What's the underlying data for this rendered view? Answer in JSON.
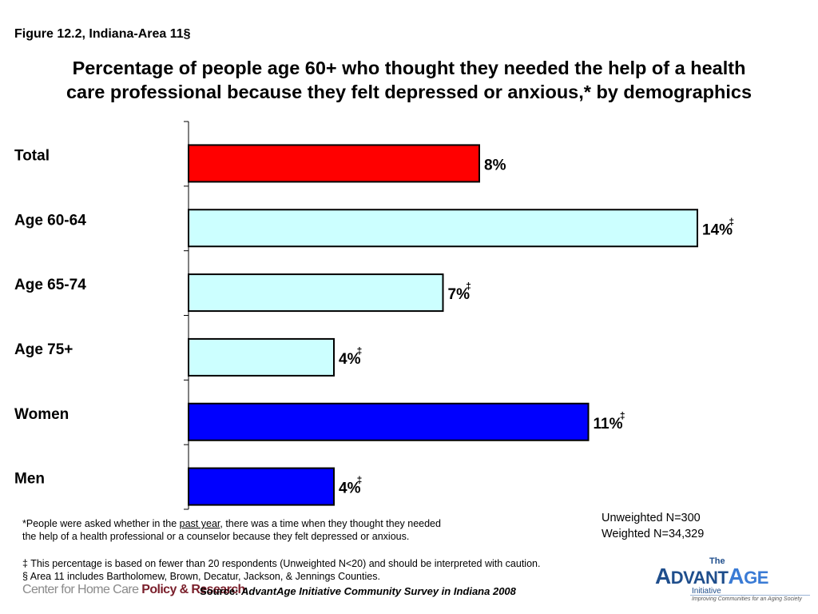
{
  "figure_label": "Figure 12.2, Indiana-Area 11§",
  "title_line1": "Percentage of people age 60+ who thought they needed the help of a health",
  "title_line2": "care professional because they felt depressed or anxious,* by demographics",
  "chart_data": {
    "type": "bar",
    "orientation": "horizontal",
    "categories": [
      "Total",
      "Age 60-64",
      "Age 65-74",
      "Age 75+",
      "Women",
      "Men"
    ],
    "values": [
      8,
      14,
      7,
      4,
      11,
      4
    ],
    "value_labels": [
      "8%",
      "14%",
      "7%",
      "4%",
      "11%",
      "4%"
    ],
    "flags": [
      "",
      "‡",
      "‡",
      "‡",
      "‡",
      "‡"
    ],
    "colors": [
      "#ff0000",
      "#ccffff",
      "#ccffff",
      "#ccffff",
      "#0000ff",
      "#0000ff"
    ],
    "xlim": [
      0,
      14
    ],
    "grid": false,
    "legend": "none"
  },
  "footnote_pre": "*People were asked whether in the ",
  "footnote_underlined": "past year",
  "footnote_post": ", there was a time when they thought they needed",
  "footnote_line2": "the help of a health professional or a counselor because they felt depressed or anxious.",
  "unweighted_n": "Unweighted N=300",
  "weighted_n": "Weighted N=34,329",
  "dagger_note": "‡ This percentage is based on fewer than 20 respondents (Unweighted N<20) and should be interpreted with caution.",
  "section_note": "§ Area 11 includes Bartholomew, Brown, Decatur, Jackson, & Jennings Counties.",
  "source_label": "Source: ",
  "source_text": "AdvantAge Initiative Community Survey in Indiana 2008",
  "logo_left": {
    "part1": "Center for Home Care ",
    "part2": "Policy & Research"
  },
  "logo_right": {
    "the": "The",
    "word_a": "A",
    "word_dvant": "DVANT",
    "word_a2": "A",
    "word_ge": "GE",
    "initiative": "Initiative",
    "tagline": "Improving Communities for an Aging Society"
  }
}
